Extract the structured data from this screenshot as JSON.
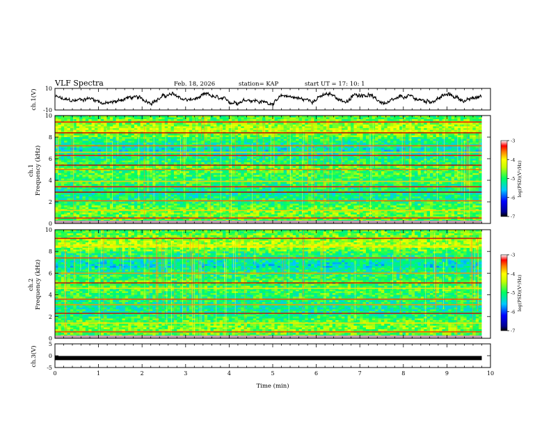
{
  "chart_data": {
    "type": "heatmap",
    "title": "VLF Spectra",
    "date": "Feb. 18, 2026",
    "station": "station= KAP",
    "start_ut": "start  UT =   17: 10: 1",
    "time_axis": {
      "label": "Time  (min)",
      "range": [
        0,
        10
      ],
      "ticks": [
        "0",
        "1",
        "2",
        "3",
        "4",
        "5",
        "6",
        "7",
        "8",
        "9",
        "10"
      ]
    },
    "panels": [
      {
        "name": "ch1-waveform",
        "type": "line",
        "ylabel": "ch.1(V)",
        "ylim": [
          -10,
          10
        ],
        "ytick_labels": [
          "10",
          "-10"
        ],
        "description_series": "ch1 voltage trace"
      },
      {
        "name": "ch1-spectrogram",
        "type": "heatmap",
        "ylabel": "ch.1  Frequency  (kHz)",
        "ylabel_top": "ch.1",
        "ylabel_bottom": "Frequency  (kHz)",
        "ylim": [
          0,
          10
        ],
        "ytick_labels": [
          "0",
          "2",
          "4",
          "6",
          "8",
          "10"
        ],
        "bands_khz": [
          0.5,
          1.2,
          2.1,
          2.9,
          3.4,
          3.9,
          5.0,
          5.4,
          6.3,
          6.6,
          7.2,
          8.4,
          9.4
        ],
        "colorbar": {
          "label": "log(PSD)(V²/Hz)",
          "range": [
            -7,
            -3
          ],
          "ticks": [
            "-3",
            "-4",
            "-5",
            "-6",
            "-7"
          ]
        }
      },
      {
        "name": "ch2-spectrogram",
        "type": "heatmap",
        "ylabel": "ch.2  Frequency  (kHz)",
        "ylabel_top": "ch.2",
        "ylabel_bottom": "Frequency  (kHz)",
        "ylim": [
          0,
          10
        ],
        "ytick_labels": [
          "0",
          "2",
          "4",
          "6",
          "8",
          "10"
        ],
        "bands_khz": [
          0.6,
          1.4,
          2.3,
          3.1,
          3.6,
          4.6,
          5.1,
          6.0,
          7.4,
          8.5,
          9.2
        ],
        "colorbar": {
          "label": "log(PSD)(V²/Hz)",
          "range": [
            -7,
            -3
          ],
          "ticks": [
            "-3",
            "-4",
            "-5",
            "-6",
            "-7"
          ]
        }
      },
      {
        "name": "ch3-waveform",
        "type": "line",
        "ylabel": "ch.3(V)",
        "ylim": [
          -5,
          5
        ],
        "ytick_labels": [
          "5",
          "0",
          "-5"
        ],
        "constant_value": -1
      }
    ]
  }
}
